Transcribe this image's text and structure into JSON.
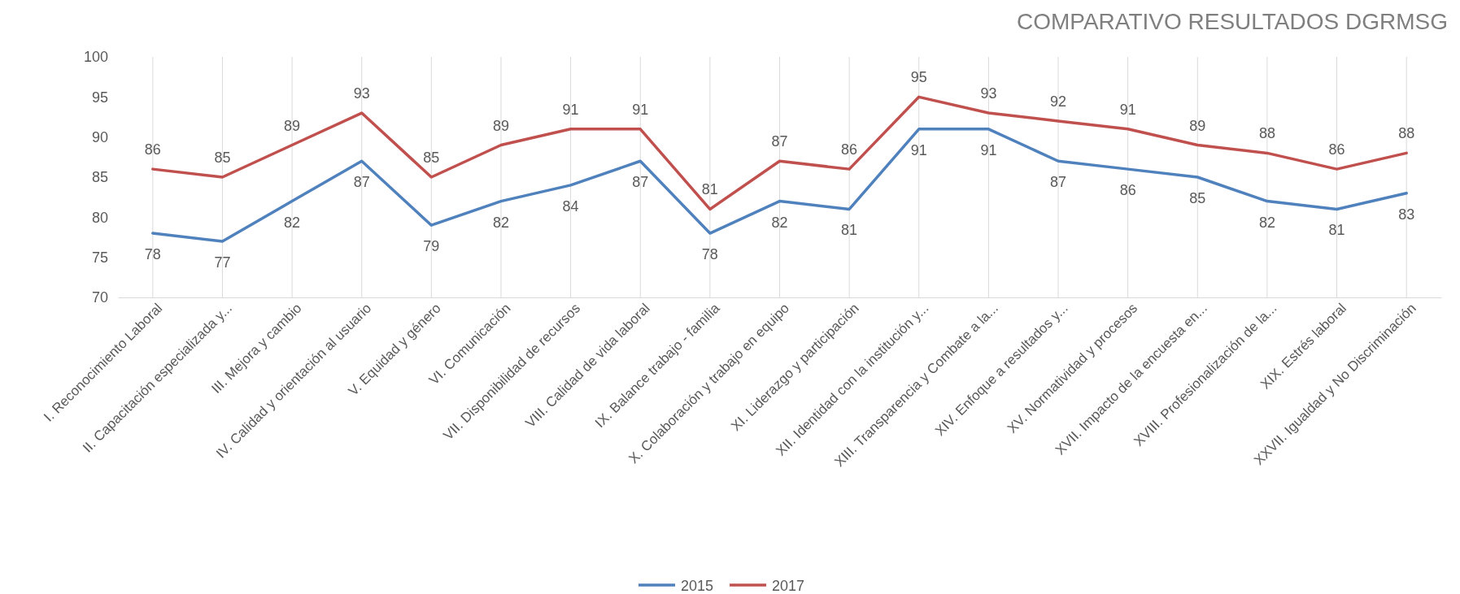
{
  "chart_data": {
    "type": "line",
    "title": "COMPARATIVO RESULTADOS DGRMSG",
    "categories": [
      "I. Reconocimiento Laboral",
      "II. Capacitación especializada y...",
      "III. Mejora y cambio",
      "IV. Calidad y orientación al usuario",
      "V. Equidad y género",
      "VI. Comunicación",
      "VII. Disponibilidad de recursos",
      "VIII. Calidad de vida laboral",
      "IX. Balance trabajo - familia",
      "X. Colaboración y trabajo en equipo",
      "XI. Liderazgo y participación",
      "XII. Identidad con la institución y...",
      "XIII. Transparencia y Combate a la...",
      "XIV. Enfoque a resultados y...",
      "XV. Normatividad y procesos",
      "XVII. Impacto de la encuesta en...",
      "XVIII. Profesionalización de la...",
      "XIX. Estrés laboral",
      "XXVII. Igualdad y No Discriminación"
    ],
    "series": [
      {
        "name": "2015",
        "color": "#4f81bd",
        "values": [
          78,
          77,
          82,
          87,
          79,
          82,
          84,
          87,
          78,
          82,
          81,
          91,
          91,
          87,
          86,
          85,
          82,
          81,
          83
        ]
      },
      {
        "name": "2017",
        "color": "#c0504d",
        "values": [
          86,
          85,
          89,
          93,
          85,
          89,
          91,
          91,
          81,
          87,
          86,
          95,
          93,
          92,
          91,
          89,
          88,
          86,
          88
        ]
      }
    ],
    "ylim": [
      70,
      100
    ],
    "yticks": [
      70,
      75,
      80,
      85,
      90,
      95,
      100
    ],
    "grid": "x",
    "legend": "bottom",
    "data_labels": true,
    "marker": "none",
    "line_style": "solid"
  }
}
